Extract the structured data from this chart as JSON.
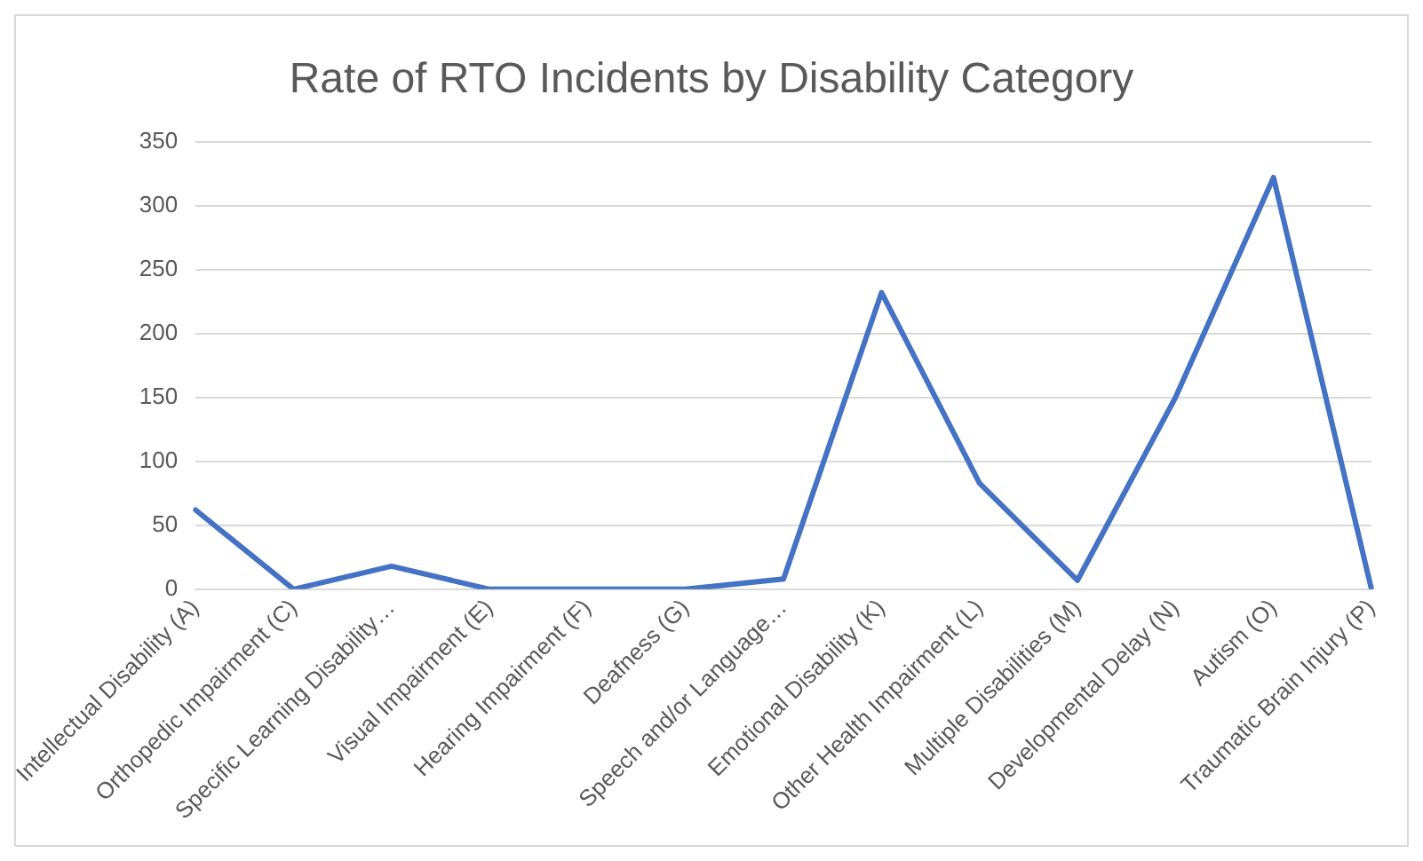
{
  "chart_data": {
    "type": "line",
    "title": "Rate of RTO Incidents by Disability Category",
    "categories": [
      "Intellectual Disability (A)",
      "Orthopedic Impairment (C)",
      "Specific Learning Disability…",
      "Visual Impairment (E)",
      "Hearing Impairment (F)",
      "Deafness (G)",
      "Speech and/or Language…",
      "Emotional Disability (K)",
      "Other Health Impairment (L)",
      "Multiple Disabilities (M)",
      "Developmental Delay (N)",
      "Autism (O)",
      "Traumatic Brain Injury (P)"
    ],
    "series": [
      {
        "color": "#4472c4",
        "values": [
          62,
          0,
          18,
          0,
          0,
          0,
          8,
          232,
          83,
          7,
          150,
          322,
          0
        ]
      }
    ],
    "ylim": [
      0,
      350
    ],
    "yticks": [
      0,
      50,
      100,
      150,
      200,
      250,
      300,
      350
    ],
    "grid": "y",
    "legend": false,
    "marker": "none"
  }
}
